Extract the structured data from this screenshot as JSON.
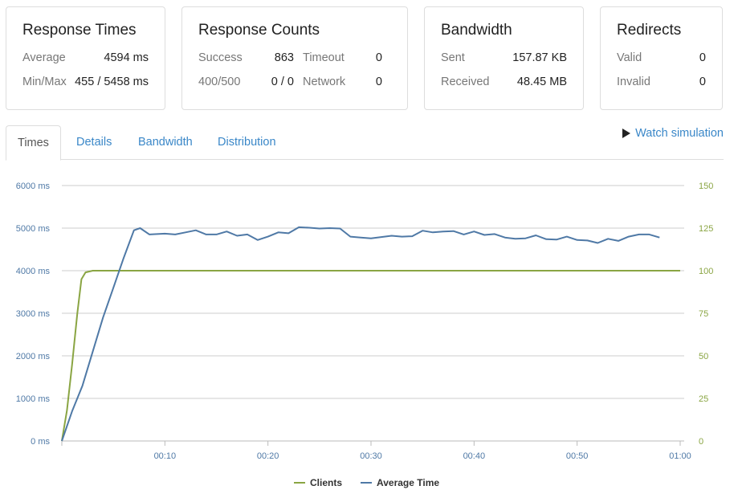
{
  "cards": {
    "response_times": {
      "title": "Response Times",
      "average_label": "Average",
      "average_value": "4594 ms",
      "minmax_label": "Min/Max",
      "minmax_value": "455 / 5458 ms"
    },
    "response_counts": {
      "title": "Response Counts",
      "success_label": "Success",
      "success_value": "863",
      "timeout_label": "Timeout",
      "timeout_value": "0",
      "err_label": "400/500",
      "err_value": "0 / 0",
      "network_label": "Network",
      "network_value": "0"
    },
    "bandwidth": {
      "title": "Bandwidth",
      "sent_label": "Sent",
      "sent_value": "157.87 KB",
      "received_label": "Received",
      "received_value": "48.45 MB"
    },
    "redirects": {
      "title": "Redirects",
      "valid_label": "Valid",
      "valid_value": "0",
      "invalid_label": "Invalid",
      "invalid_value": "0"
    }
  },
  "tabs": [
    "Times",
    "Details",
    "Bandwidth",
    "Distribution"
  ],
  "watch_label": "Watch simulation",
  "icons": {
    "watch": "play-icon"
  },
  "colors": {
    "clients": "#8aa543",
    "average_time": "#4f79a6",
    "link": "#3a87c8"
  },
  "chart_data": {
    "type": "line",
    "y_left_ticks": [
      "0 ms",
      "1000 ms",
      "2000 ms",
      "3000 ms",
      "4000 ms",
      "5000 ms",
      "6000 ms"
    ],
    "y_right_ticks": [
      "0",
      "25",
      "50",
      "75",
      "100",
      "125",
      "150"
    ],
    "x_ticks": [
      "00:10",
      "00:20",
      "00:30",
      "00:40",
      "00:50",
      "01:00"
    ],
    "y_left_range": [
      0,
      6000
    ],
    "y_right_range": [
      0,
      150
    ],
    "x_range_seconds": [
      0,
      60
    ],
    "grid": true,
    "legend_position": "bottom-center",
    "series": [
      {
        "name": "Clients",
        "axis": "right",
        "points": [
          [
            0,
            0
          ],
          [
            0.5,
            18
          ],
          [
            1,
            45
          ],
          [
            1.5,
            75
          ],
          [
            1.9,
            95
          ],
          [
            2.3,
            99
          ],
          [
            3,
            100
          ],
          [
            10,
            100
          ],
          [
            20,
            100
          ],
          [
            30,
            100
          ],
          [
            40,
            100
          ],
          [
            50,
            100
          ],
          [
            60,
            100
          ]
        ]
      },
      {
        "name": "Average Time",
        "axis": "left",
        "points": [
          [
            0,
            0
          ],
          [
            1,
            700
          ],
          [
            2,
            1300
          ],
          [
            3,
            2100
          ],
          [
            4,
            2900
          ],
          [
            5,
            3600
          ],
          [
            6,
            4300
          ],
          [
            7,
            4950
          ],
          [
            7.6,
            5000
          ],
          [
            8.5,
            4850
          ],
          [
            10,
            4870
          ],
          [
            11,
            4850
          ],
          [
            12,
            4900
          ],
          [
            13,
            4950
          ],
          [
            14,
            4850
          ],
          [
            15,
            4850
          ],
          [
            16,
            4920
          ],
          [
            17,
            4820
          ],
          [
            18,
            4850
          ],
          [
            19,
            4720
          ],
          [
            20,
            4800
          ],
          [
            21,
            4900
          ],
          [
            22,
            4880
          ],
          [
            23,
            5020
          ],
          [
            24,
            5010
          ],
          [
            25,
            4990
          ],
          [
            26,
            5000
          ],
          [
            27,
            4990
          ],
          [
            28,
            4800
          ],
          [
            29,
            4780
          ],
          [
            30,
            4760
          ],
          [
            31,
            4790
          ],
          [
            32,
            4820
          ],
          [
            33,
            4800
          ],
          [
            34,
            4810
          ],
          [
            35,
            4940
          ],
          [
            36,
            4900
          ],
          [
            37,
            4920
          ],
          [
            38,
            4930
          ],
          [
            39,
            4850
          ],
          [
            40,
            4920
          ],
          [
            41,
            4840
          ],
          [
            42,
            4860
          ],
          [
            43,
            4780
          ],
          [
            44,
            4750
          ],
          [
            45,
            4760
          ],
          [
            46,
            4830
          ],
          [
            47,
            4740
          ],
          [
            48,
            4730
          ],
          [
            49,
            4800
          ],
          [
            50,
            4720
          ],
          [
            51,
            4710
          ],
          [
            52,
            4650
          ],
          [
            53,
            4750
          ],
          [
            54,
            4700
          ],
          [
            55,
            4800
          ],
          [
            56,
            4850
          ],
          [
            57,
            4850
          ],
          [
            58,
            4780
          ]
        ]
      }
    ]
  }
}
